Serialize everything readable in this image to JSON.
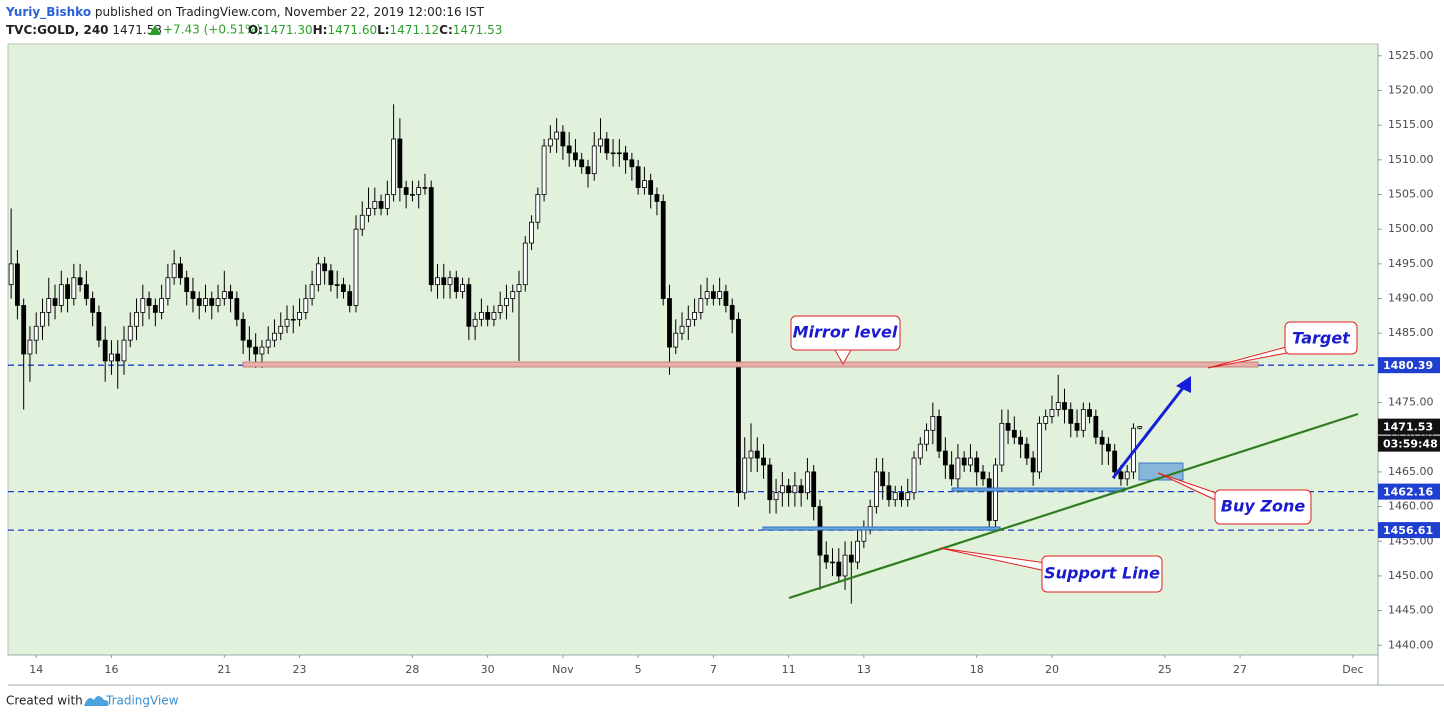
{
  "header": {
    "author": "Yuriy_Bishko",
    "published": "published on TradingView.com, November 22, 2019 12:00:16 IST",
    "symbol": "TVC:GOLD, 240",
    "change": "+7.43 (+0.51%)",
    "ohlc": [
      {
        "label": "O:",
        "value": "1471.30"
      },
      {
        "label": "H:",
        "value": "1471.60"
      },
      {
        "label": "L:",
        "value": "1471.12"
      },
      {
        "label": "C:",
        "value": "1471.53"
      }
    ]
  },
  "footer": {
    "created": "Created with",
    "brand": "TradingView"
  },
  "chart_data": {
    "type": "candlestick",
    "up_color": "#ffffff",
    "down_color": "#000000",
    "level_color": "#1e3fd0",
    "xlim": [
      -0.5,
      218
    ],
    "ylim": [
      1438.6,
      1526.7
    ],
    "xticks": [
      {
        "value": 4,
        "label": "14"
      },
      {
        "value": 16,
        "label": "16"
      },
      {
        "value": 34,
        "label": "21"
      },
      {
        "value": 46,
        "label": "23"
      },
      {
        "value": 64,
        "label": "28"
      },
      {
        "value": 76,
        "label": "30"
      },
      {
        "value": 88,
        "label": "Nov"
      },
      {
        "value": 100,
        "label": "5"
      },
      {
        "value": 112,
        "label": "7"
      },
      {
        "value": 124,
        "label": "11"
      },
      {
        "value": 136,
        "label": "13"
      },
      {
        "value": 154,
        "label": "18"
      },
      {
        "value": 166,
        "label": "20"
      },
      {
        "value": 184,
        "label": "25"
      },
      {
        "value": 196,
        "label": "27"
      },
      {
        "value": 214,
        "label": "Dec"
      }
    ],
    "yticks": [
      {
        "value": 1440,
        "label": "1440.00"
      },
      {
        "value": 1445,
        "label": "1445.00"
      },
      {
        "value": 1450,
        "label": "1450.00"
      },
      {
        "value": 1455,
        "label": "1455.00"
      },
      {
        "value": 1460,
        "label": "1460.00"
      },
      {
        "value": 1465,
        "label": "1465.00"
      },
      {
        "value": 1470,
        "label": "1470.00"
      },
      {
        "value": 1475,
        "label": "1475.00"
      },
      {
        "value": 1480,
        "label": "1480.00"
      },
      {
        "value": 1485,
        "label": "1485.00"
      },
      {
        "value": 1490,
        "label": "1490.00"
      },
      {
        "value": 1495,
        "label": "1495.00"
      },
      {
        "value": 1500,
        "label": "1500.00"
      },
      {
        "value": 1505,
        "label": "1505.00"
      },
      {
        "value": 1510,
        "label": "1510.00"
      },
      {
        "value": 1515,
        "label": "1515.00"
      },
      {
        "value": 1520,
        "label": "1520.00"
      },
      {
        "value": 1525,
        "label": "1525.00"
      }
    ],
    "levels": [
      1480.39,
      1462.16,
      1456.61
    ],
    "countdown": "03:59:48",
    "annotations": [
      "Mirror level",
      "Target",
      "Buy Zone",
      "Support Line"
    ],
    "open": [
      1492,
      1495,
      1489,
      1482,
      1484,
      1486,
      1488,
      1490,
      1489,
      1492,
      1490,
      1493,
      1492,
      1490,
      1488,
      1484,
      1481,
      1482,
      1481,
      1484,
      1486,
      1488,
      1490,
      1489,
      1488,
      1490,
      1493,
      1495,
      1493,
      1491,
      1490,
      1489,
      1490,
      1489,
      1490,
      1491,
      1490,
      1487,
      1484,
      1483,
      1482,
      1483,
      1484,
      1485,
      1486,
      1487,
      1487,
      1488,
      1490,
      1492,
      1495,
      1494,
      1492,
      1492,
      1491,
      1489,
      1500,
      1502,
      1503,
      1504,
      1503,
      1505,
      1513,
      1506,
      1505,
      1505,
      1506,
      1506,
      1492,
      1493,
      1492,
      1493,
      1491,
      1492,
      1486,
      1487,
      1488,
      1487,
      1488,
      1489,
      1490,
      1491,
      1492,
      1498,
      1501,
      1505,
      1512,
      1513,
      1514,
      1512,
      1511,
      1510,
      1509,
      1508,
      1512,
      1513,
      1511,
      1511,
      1511,
      1510,
      1509,
      1506,
      1507,
      1505,
      1504,
      1490,
      1483,
      1485,
      1486,
      1487,
      1488,
      1490,
      1491,
      1490,
      1491,
      1489,
      1487,
      1462,
      1467,
      1468,
      1467,
      1466,
      1461,
      1462,
      1463,
      1462,
      1463,
      1462,
      1465,
      1460,
      1453,
      1452,
      1452,
      1450,
      1453,
      1452,
      1455,
      1457,
      1460,
      1465,
      1463,
      1461,
      1462,
      1461,
      1462,
      1467,
      1469,
      1471,
      1473,
      1468,
      1466,
      1464,
      1467,
      1466,
      1467,
      1465,
      1464,
      1458,
      1466,
      1472,
      1471,
      1470,
      1469,
      1467,
      1465,
      1472,
      1473,
      1474,
      1475,
      1474,
      1472,
      1471,
      1474,
      1473,
      1470,
      1469,
      1468,
      1465,
      1464,
      1465,
      1471.3
    ],
    "high": [
      1503,
      1497,
      1490,
      1486,
      1488,
      1490,
      1493,
      1492,
      1494,
      1493,
      1495,
      1495,
      1494,
      1491,
      1489,
      1486,
      1484,
      1484,
      1486,
      1488,
      1490,
      1492,
      1491,
      1490,
      1492,
      1495,
      1497,
      1496,
      1494,
      1493,
      1491,
      1492,
      1491,
      1492,
      1494,
      1492,
      1491,
      1488,
      1486,
      1485,
      1484,
      1486,
      1487,
      1488,
      1489,
      1489,
      1490,
      1492,
      1494,
      1496,
      1496,
      1495,
      1494,
      1493,
      1492,
      1502,
      1504,
      1506,
      1506,
      1505,
      1507,
      1518,
      1516,
      1507,
      1507,
      1507,
      1508,
      1507,
      1495,
      1495,
      1494,
      1494,
      1493,
      1493,
      1488,
      1490,
      1489,
      1489,
      1491,
      1492,
      1492,
      1494,
      1499,
      1502,
      1506,
      1513,
      1515,
      1516,
      1515,
      1514,
      1513,
      1511,
      1510,
      1514,
      1516,
      1514,
      1513,
      1513,
      1512,
      1511,
      1510,
      1509,
      1508,
      1506,
      1505,
      1492,
      1487,
      1488,
      1489,
      1490,
      1492,
      1493,
      1492,
      1493,
      1492,
      1490,
      1488,
      1470,
      1472,
      1470,
      1469,
      1467,
      1464,
      1465,
      1464,
      1465,
      1464,
      1467,
      1466,
      1461,
      1455,
      1454,
      1454,
      1455,
      1455,
      1457,
      1458,
      1461,
      1467,
      1467,
      1465,
      1463,
      1463,
      1464,
      1468,
      1470,
      1472,
      1475,
      1474,
      1470,
      1468,
      1469,
      1468,
      1469,
      1468,
      1466,
      1465,
      1467,
      1474,
      1474,
      1473,
      1471,
      1470,
      1468,
      1473,
      1474,
      1476,
      1479,
      1477,
      1475,
      1474,
      1475,
      1475,
      1474,
      1471,
      1470,
      1469,
      1466,
      1466,
      1472,
      1471.6
    ],
    "low": [
      1490,
      1487,
      1474,
      1478,
      1482,
      1484,
      1486,
      1487,
      1488,
      1488,
      1489,
      1491,
      1489,
      1486,
      1483,
      1478,
      1479,
      1477,
      1479,
      1483,
      1484,
      1486,
      1487,
      1486,
      1487,
      1489,
      1492,
      1492,
      1489,
      1488,
      1487,
      1488,
      1487,
      1488,
      1489,
      1488,
      1486,
      1482,
      1481,
      1480,
      1480,
      1482,
      1483,
      1484,
      1485,
      1485,
      1486,
      1487,
      1489,
      1491,
      1492,
      1491,
      1490,
      1490,
      1488,
      1488,
      1499,
      1501,
      1502,
      1502,
      1502,
      1504,
      1504,
      1503,
      1504,
      1503,
      1505,
      1491,
      1490,
      1490,
      1490,
      1490,
      1490,
      1484,
      1484,
      1486,
      1486,
      1486,
      1487,
      1487,
      1488,
      1481,
      1491,
      1497,
      1500,
      1504,
      1511,
      1511,
      1510,
      1509,
      1509,
      1508,
      1506,
      1507,
      1511,
      1510,
      1509,
      1509,
      1508,
      1507,
      1505,
      1505,
      1503,
      1502,
      1489,
      1479,
      1482,
      1484,
      1484,
      1486,
      1487,
      1489,
      1489,
      1489,
      1488,
      1485,
      1460,
      1461,
      1465,
      1465,
      1464,
      1459,
      1459,
      1460,
      1460,
      1460,
      1460,
      1461,
      1458,
      1448,
      1451,
      1450,
      1449,
      1448,
      1446,
      1451,
      1454,
      1456,
      1459,
      1461,
      1460,
      1460,
      1460,
      1460,
      1461,
      1466,
      1468,
      1469,
      1467,
      1464,
      1463,
      1462,
      1465,
      1465,
      1463,
      1463,
      1457,
      1457,
      1465,
      1469,
      1469,
      1467,
      1466,
      1463,
      1464,
      1471,
      1472,
      1473,
      1472,
      1470,
      1470,
      1470,
      1472,
      1469,
      1466,
      1466,
      1464,
      1463,
      1463,
      1464,
      1471.12
    ],
    "close": [
      1495,
      1489,
      1482,
      1484,
      1486,
      1488,
      1490,
      1489,
      1492,
      1490,
      1493,
      1492,
      1490,
      1488,
      1484,
      1481,
      1482,
      1481,
      1484,
      1486,
      1488,
      1490,
      1489,
      1488,
      1490,
      1493,
      1495,
      1493,
      1491,
      1490,
      1489,
      1490,
      1489,
      1490,
      1491,
      1490,
      1487,
      1484,
      1483,
      1482,
      1483,
      1484,
      1485,
      1486,
      1487,
      1487,
      1488,
      1490,
      1492,
      1495,
      1494,
      1492,
      1492,
      1491,
      1489,
      1500,
      1502,
      1503,
      1504,
      1503,
      1505,
      1513,
      1506,
      1505,
      1505,
      1506,
      1506,
      1492,
      1493,
      1492,
      1493,
      1491,
      1492,
      1486,
      1487,
      1488,
      1487,
      1488,
      1489,
      1490,
      1491,
      1492,
      1498,
      1501,
      1505,
      1512,
      1513,
      1514,
      1512,
      1511,
      1510,
      1509,
      1508,
      1512,
      1513,
      1511,
      1511,
      1511,
      1510,
      1509,
      1506,
      1507,
      1505,
      1504,
      1490,
      1483,
      1485,
      1486,
      1487,
      1488,
      1490,
      1491,
      1490,
      1491,
      1489,
      1487,
      1462,
      1467,
      1468,
      1467,
      1466,
      1461,
      1462,
      1463,
      1462,
      1463,
      1462,
      1465,
      1460,
      1453,
      1452,
      1452,
      1450,
      1453,
      1452,
      1455,
      1457,
      1460,
      1465,
      1463,
      1461,
      1462,
      1461,
      1462,
      1467,
      1469,
      1471,
      1473,
      1468,
      1466,
      1464,
      1467,
      1466,
      1467,
      1465,
      1464,
      1458,
      1466,
      1472,
      1471,
      1470,
      1469,
      1467,
      1465,
      1472,
      1473,
      1474,
      1475,
      1474,
      1472,
      1471,
      1474,
      1473,
      1470,
      1469,
      1468,
      1465,
      1464,
      1465,
      1471.3,
      1471.53
    ]
  }
}
